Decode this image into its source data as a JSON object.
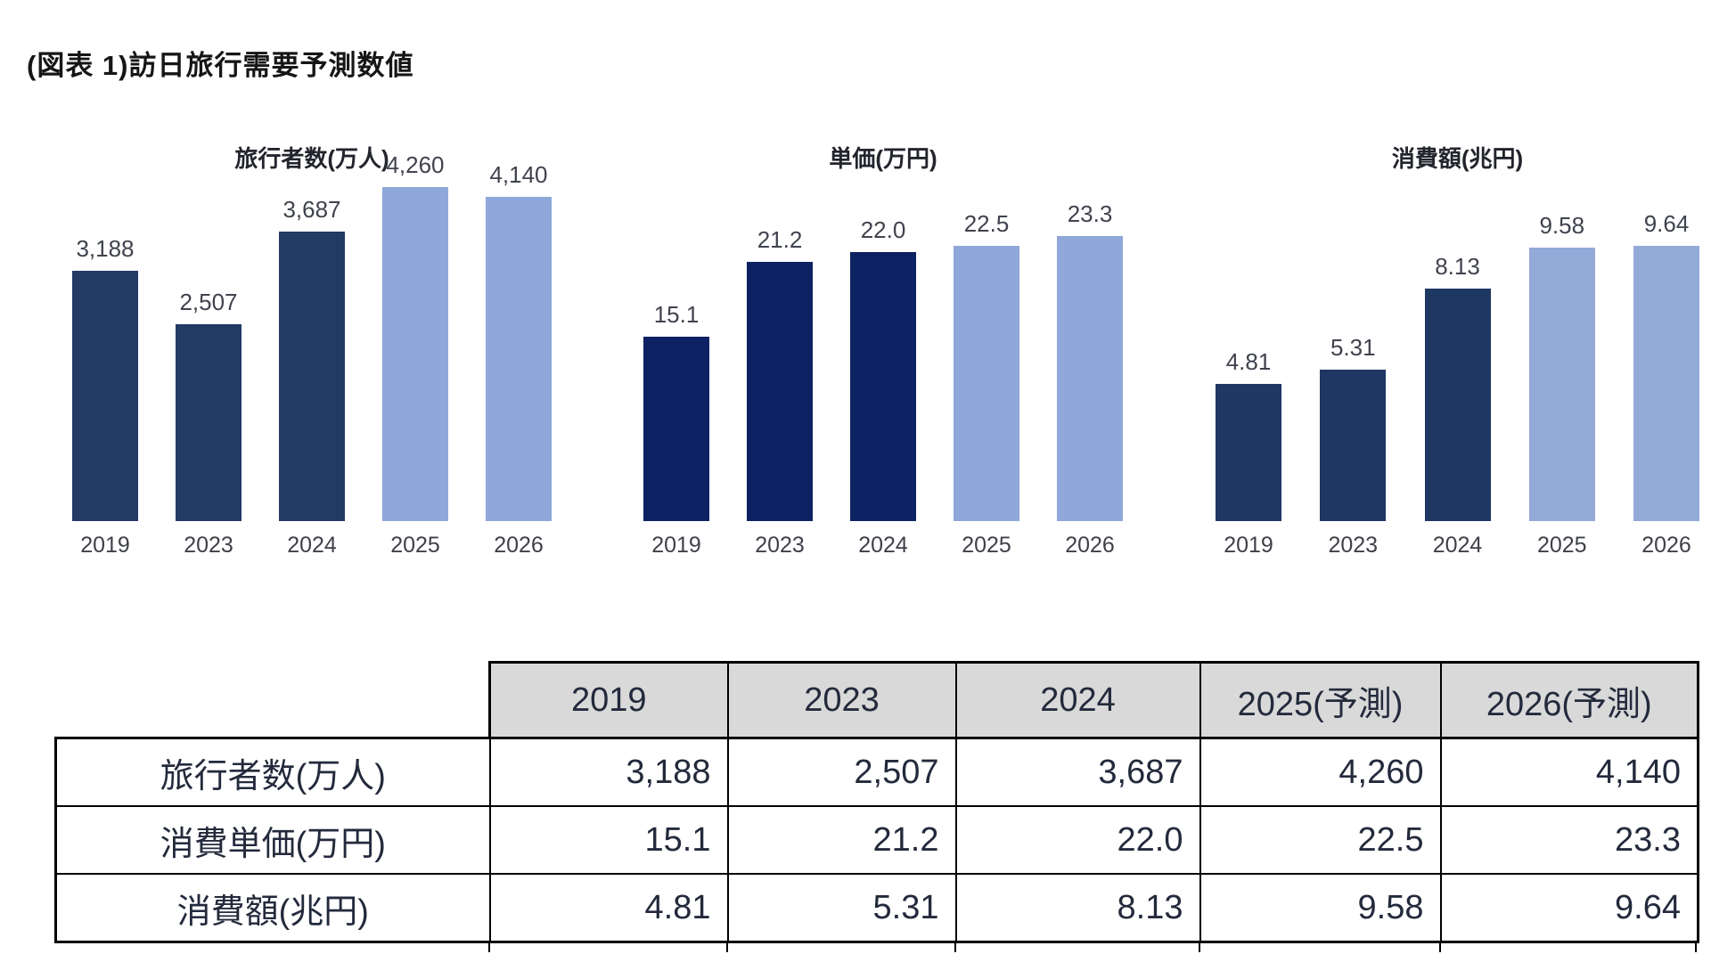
{
  "page": {
    "title": "(図表 1)訪日旅行需要予測数値"
  },
  "chart_data": [
    {
      "type": "bar",
      "title": "旅行者数(万人)",
      "categories": [
        "2019",
        "2023",
        "2024",
        "2025",
        "2026"
      ],
      "values": [
        3188,
        2507,
        3687,
        4260,
        4140
      ],
      "value_labels": [
        "3,188",
        "2,507",
        "3,687",
        "4,260",
        "4,140"
      ],
      "actual_color": "#223a64",
      "forecast_color": "#8fa7d9",
      "forecast_start_index": 3,
      "ylim": [
        0,
        4260
      ],
      "grid": false,
      "legend": "none"
    },
    {
      "type": "bar",
      "title": "単価(万円)",
      "categories": [
        "2019",
        "2023",
        "2024",
        "2025",
        "2026"
      ],
      "values": [
        15.1,
        21.2,
        22.0,
        22.5,
        23.3
      ],
      "value_labels": [
        "15.1",
        "21.2",
        "22.0",
        "22.5",
        "23.3"
      ],
      "actual_color": "#0d2262",
      "forecast_color": "#8fa7d9",
      "forecast_start_index": 3,
      "ylim": [
        0,
        23.3
      ],
      "grid": false,
      "legend": "none"
    },
    {
      "type": "bar",
      "title": "消費額(兆円)",
      "categories": [
        "2019",
        "2023",
        "2024",
        "2025",
        "2026"
      ],
      "values": [
        4.81,
        5.31,
        8.13,
        9.58,
        9.64
      ],
      "value_labels": [
        "4.81",
        "5.31",
        "8.13",
        "9.58",
        "9.64"
      ],
      "actual_color": "#1e3763",
      "forecast_color": "#93aad9",
      "forecast_start_index": 3,
      "ylim": [
        0,
        9.64
      ],
      "grid": false,
      "legend": "none"
    }
  ],
  "table": {
    "corner": "",
    "col_headers": [
      "2019",
      "2023",
      "2024",
      "2025(予測)",
      "2026(予測)"
    ],
    "header_bg": "#d9d9d9",
    "rows": [
      {
        "label": "旅行者数(万人)",
        "values": [
          "3,188",
          "2,507",
          "3,687",
          "4,260",
          "4,140"
        ]
      },
      {
        "label": "消費単価(万円)",
        "values": [
          "15.1",
          "21.2",
          "22.0",
          "22.5",
          "23.3"
        ]
      },
      {
        "label": "消費額(兆円)",
        "values": [
          "4.81",
          "5.31",
          "8.13",
          "9.58",
          "9.64"
        ]
      }
    ]
  }
}
